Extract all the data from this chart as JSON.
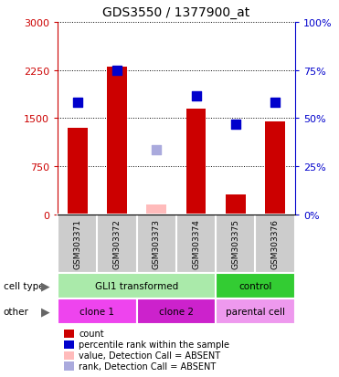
{
  "title": "GDS3550 / 1377900_at",
  "samples": [
    "GSM303371",
    "GSM303372",
    "GSM303373",
    "GSM303374",
    "GSM303375",
    "GSM303376"
  ],
  "bar_heights": [
    1350,
    2300,
    150,
    1650,
    300,
    1450
  ],
  "bar_absent": [
    false,
    false,
    true,
    false,
    false,
    false
  ],
  "dot_values": [
    1750,
    2250,
    1000,
    1850,
    1400,
    1750
  ],
  "dot_absent": [
    false,
    false,
    true,
    false,
    false,
    false
  ],
  "ylim": [
    0,
    3000
  ],
  "yticks": [
    0,
    750,
    1500,
    2250,
    3000
  ],
  "ytick_labels": [
    "0",
    "750",
    "1500",
    "2250",
    "3000"
  ],
  "right_ytick_labels": [
    "0%",
    "25%",
    "50%",
    "75%",
    "100%"
  ],
  "bar_color_present": "#cc0000",
  "bar_color_absent": "#ffbbbb",
  "dot_color_present": "#0000cc",
  "dot_color_absent": "#aaaadd",
  "cell_type_groups": [
    {
      "label": "GLI1 transformed",
      "start": 0,
      "end": 4,
      "color": "#aaeaaa"
    },
    {
      "label": "control",
      "start": 4,
      "end": 6,
      "color": "#33cc33"
    }
  ],
  "other_groups": [
    {
      "label": "clone 1",
      "start": 0,
      "end": 2,
      "color": "#ee44ee"
    },
    {
      "label": "clone 2",
      "start": 2,
      "end": 4,
      "color": "#cc22cc"
    },
    {
      "label": "parental cell",
      "start": 4,
      "end": 6,
      "color": "#ee99ee"
    }
  ],
  "cell_type_label": "cell type",
  "other_label": "other",
  "legend_items": [
    {
      "label": "count",
      "color": "#cc0000"
    },
    {
      "label": "percentile rank within the sample",
      "color": "#0000cc"
    },
    {
      "label": "value, Detection Call = ABSENT",
      "color": "#ffbbbb"
    },
    {
      "label": "rank, Detection Call = ABSENT",
      "color": "#aaaadd"
    }
  ],
  "bar_width": 0.5,
  "dot_size": 55,
  "sample_bg_color": "#cccccc",
  "grid_color": "#000000",
  "axis_color_left": "#cc0000",
  "axis_color_right": "#0000cc"
}
